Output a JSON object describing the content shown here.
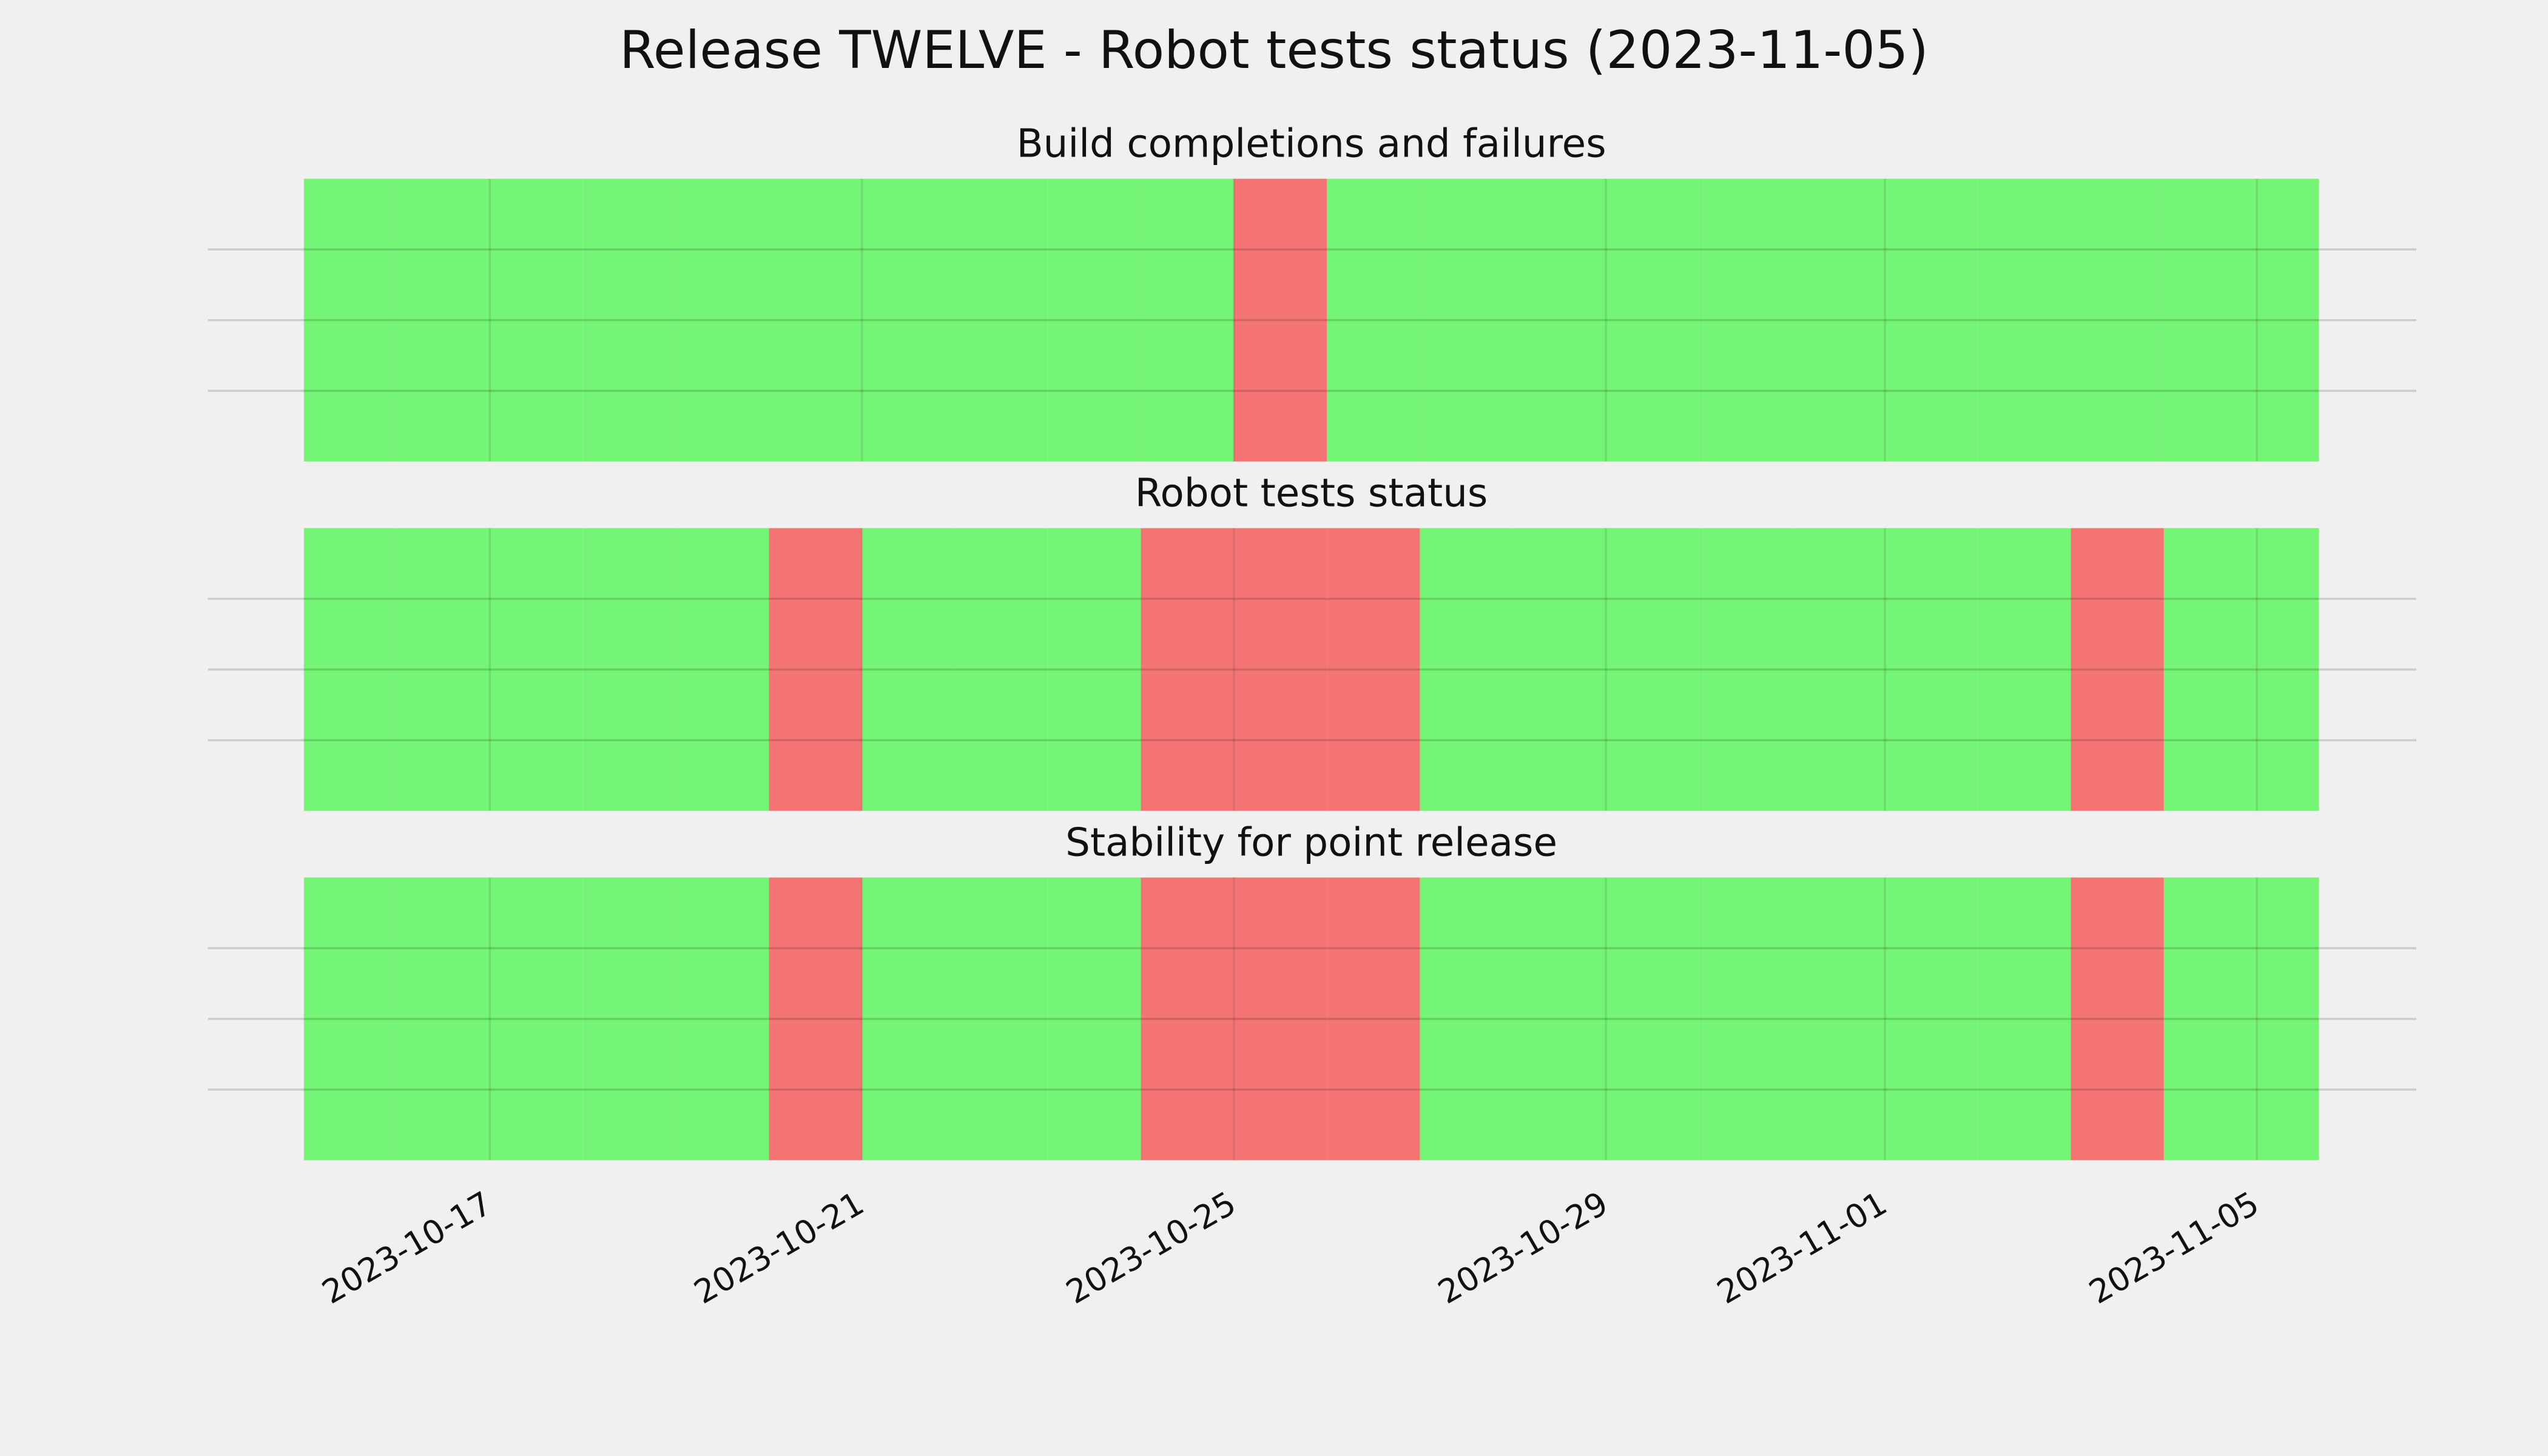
{
  "title": "Release TWELVE - Robot tests status (2023-11-05)",
  "chart_data": [
    {
      "type": "timeline",
      "title": "Build completions and failures",
      "x": [
        "2023-10-15",
        "2023-10-16",
        "2023-10-17",
        "2023-10-18",
        "2023-10-19",
        "2023-10-20",
        "2023-10-21",
        "2023-10-22",
        "2023-10-23",
        "2023-10-24",
        "2023-10-25",
        "2023-10-26",
        "2023-10-27",
        "2023-10-28",
        "2023-10-29",
        "2023-10-30",
        "2023-10-31",
        "2023-11-01",
        "2023-11-02",
        "2023-11-03",
        "2023-11-04",
        "2023-11-05"
      ],
      "values": [
        1,
        1,
        1,
        1,
        1,
        1,
        1,
        1,
        1,
        1,
        0,
        1,
        1,
        1,
        1,
        1,
        1,
        1,
        1,
        1,
        1,
        1
      ],
      "status_colors": {
        "0": "#f57575",
        "1": "#75f575"
      },
      "xlim": [
        "2023-10-15",
        "2023-11-05T16:00:00Z"
      ],
      "xticks": [
        "2023-10-17",
        "2023-10-21",
        "2023-10-25",
        "2023-10-29",
        "2023-11-01",
        "2023-11-05"
      ],
      "grid": true
    },
    {
      "type": "timeline",
      "title": "Robot tests status",
      "x": [
        "2023-10-15",
        "2023-10-16",
        "2023-10-17",
        "2023-10-18",
        "2023-10-19",
        "2023-10-20",
        "2023-10-21",
        "2023-10-22",
        "2023-10-23",
        "2023-10-24",
        "2023-10-25",
        "2023-10-26",
        "2023-10-27",
        "2023-10-28",
        "2023-10-29",
        "2023-10-30",
        "2023-10-31",
        "2023-11-01",
        "2023-11-02",
        "2023-11-03",
        "2023-11-04",
        "2023-11-05"
      ],
      "values": [
        1,
        1,
        1,
        1,
        1,
        0,
        1,
        1,
        1,
        0,
        0,
        0,
        1,
        1,
        1,
        1,
        1,
        1,
        1,
        0,
        1,
        1
      ],
      "status_colors": {
        "0": "#f57575",
        "1": "#75f575"
      },
      "xlim": [
        "2023-10-15",
        "2023-11-05T16:00:00Z"
      ],
      "xticks": [
        "2023-10-17",
        "2023-10-21",
        "2023-10-25",
        "2023-10-29",
        "2023-11-01",
        "2023-11-05"
      ],
      "grid": true
    },
    {
      "type": "timeline",
      "title": "Stability for point release",
      "x": [
        "2023-10-15",
        "2023-10-16",
        "2023-10-17",
        "2023-10-18",
        "2023-10-19",
        "2023-10-20",
        "2023-10-21",
        "2023-10-22",
        "2023-10-23",
        "2023-10-24",
        "2023-10-25",
        "2023-10-26",
        "2023-10-27",
        "2023-10-28",
        "2023-10-29",
        "2023-10-30",
        "2023-10-31",
        "2023-11-01",
        "2023-11-02",
        "2023-11-03",
        "2023-11-04",
        "2023-11-05"
      ],
      "values": [
        1,
        1,
        1,
        1,
        1,
        0,
        1,
        1,
        1,
        0,
        0,
        0,
        1,
        1,
        1,
        1,
        1,
        1,
        1,
        0,
        1,
        1
      ],
      "status_colors": {
        "0": "#f57575",
        "1": "#75f575"
      },
      "xlim": [
        "2023-10-15",
        "2023-11-05T16:00:00Z"
      ],
      "xticks": [
        "2023-10-17",
        "2023-10-21",
        "2023-10-25",
        "2023-10-29",
        "2023-11-01",
        "2023-11-05"
      ],
      "grid": true
    }
  ]
}
